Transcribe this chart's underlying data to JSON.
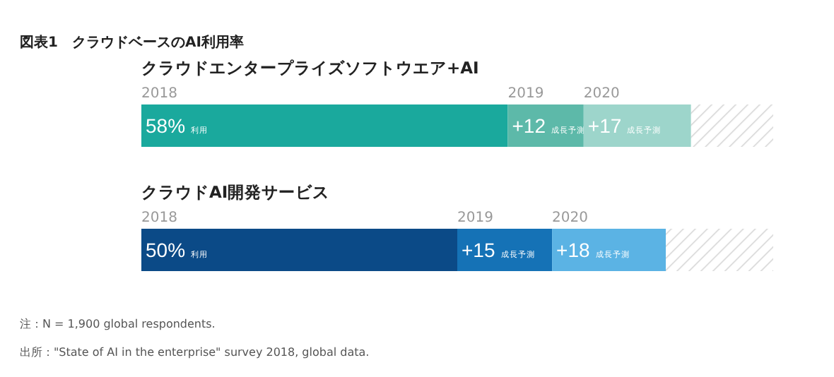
{
  "chart_data": {
    "type": "bar",
    "orientation": "horizontal",
    "stacked": true,
    "title": "図表1　クラウドベースのAI利用率",
    "categories": [
      "クラウドエンタープライズソフトウエア+AI",
      "クラウドAI開発サービス"
    ],
    "series": [
      {
        "name": "2018",
        "colors": [
          "#1aa99d",
          "#0b4a87"
        ],
        "values": [
          58,
          50
        ],
        "value_labels": [
          "58% 利用",
          "50% 利用"
        ]
      },
      {
        "name": "2019",
        "colors": [
          "#5db9a9",
          "#1572b6"
        ],
        "values": [
          12,
          15
        ],
        "value_labels": [
          "+12 成長予測",
          "+15 成長予測"
        ]
      },
      {
        "name": "2020",
        "colors": [
          "#9dd5cb",
          "#5bb3e4"
        ],
        "values": [
          17,
          18
        ],
        "value_labels": [
          "+17 成長予測",
          "+18 成長予測"
        ]
      },
      {
        "colors": [
          "#d6d6d6",
          "#d6d6d6"
        ],
        "values": [
          13,
          17
        ]
      }
    ],
    "annotations": [
      "注：N = 1,900 global respondents.",
      "出所：\"State of AI in the enterprise\" survey 2018, global data."
    ]
  }
}
